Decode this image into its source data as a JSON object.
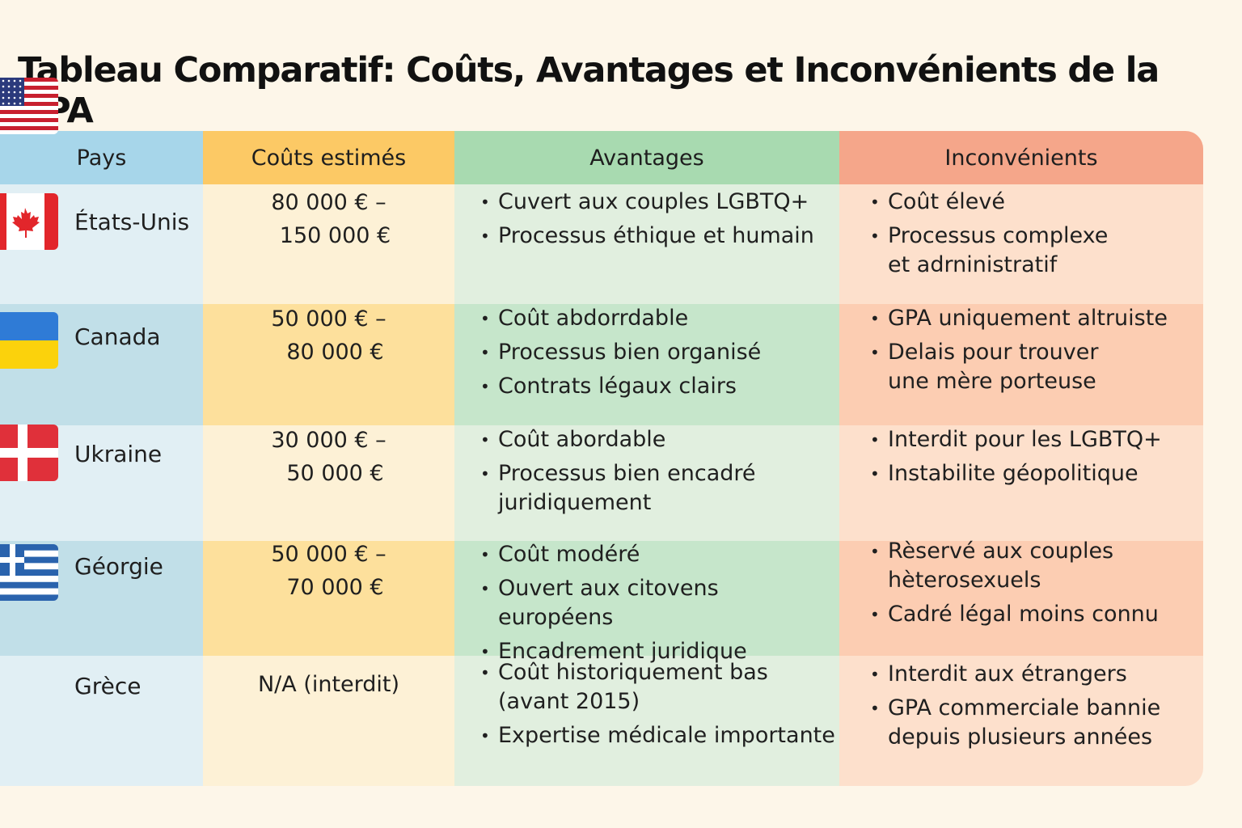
{
  "title": "Tableau Comparatif: Coûts, Avantages et Inconvénients de la GPA",
  "headers": {
    "pays": "Pays",
    "couts": "Coûts estimés",
    "avantages": "Avantages",
    "inconvenients": "Inconvénients"
  },
  "colors": {
    "pays_header": "#a7d6ea",
    "couts_header": "#fcc965",
    "avantages_header": "#a8dab0",
    "inconvenients_header": "#f5a68a",
    "pays_light": "#e1eff4",
    "pays_dark": "#c1dfe8",
    "couts_light": "#fdf1d6",
    "couts_dark": "#fde09c",
    "avantages_light": "#e1efdf",
    "avantages_dark": "#c6e6cb",
    "inconvenients_light": "#fde0cc",
    "inconvenients_dark": "#fccdb2"
  },
  "rows": [
    {
      "flag": "usa-flag-icon",
      "country": "États-Unis",
      "cost": [
        "80 000 € –",
        "150 000 €"
      ],
      "avantages": [
        "Cuvert aux couples LGBTQ+",
        "Processus éthique et humain"
      ],
      "inconvenients": [
        "Coût élevé",
        "Processus complexe\net adrninistratif"
      ]
    },
    {
      "flag": "canada-flag-icon",
      "country": "Canada",
      "cost": [
        "50 000 € –",
        "80 000 €"
      ],
      "avantages": [
        "Coût abdorrdable",
        "Processus bien organisé",
        "Contrats légaux clairs"
      ],
      "inconvenients": [
        "GPA uniquement altruiste",
        "Delais pour trouver\nune mère porteuse"
      ]
    },
    {
      "flag": "ukraine-flag-icon",
      "country": "Ukraine",
      "cost": [
        "30 000 € –",
        "50 000 €"
      ],
      "avantages": [
        "Coût abordable",
        "Processus bien encadré\njuridiquement"
      ],
      "inconvenients": [
        "Interdit pour les LGBTQ+",
        "Instabilite géopolitique"
      ]
    },
    {
      "flag": "georgia-flag-icon",
      "country": "Géorgie",
      "cost": [
        "50 000 € –",
        "70 000 €"
      ],
      "avantages": [
        "Coût modéré",
        "Ouvert aux citovens européens",
        "Encadrement juridique"
      ],
      "inconvenients": [
        "Rèservé aux couples\nhèterosexuels",
        "Cadré légal moins connu"
      ]
    },
    {
      "flag": "greece-flag-icon",
      "country": "Grèce",
      "cost": [
        "N/A (interdit)"
      ],
      "avantages": [
        "Coût historiquement bas\n(avant 2015)",
        "Expertise médicale importante"
      ],
      "inconvenients": [
        "Interdit aux étrangers",
        "GPA commerciale bannie\ndepuis plusieurs années"
      ]
    }
  ]
}
